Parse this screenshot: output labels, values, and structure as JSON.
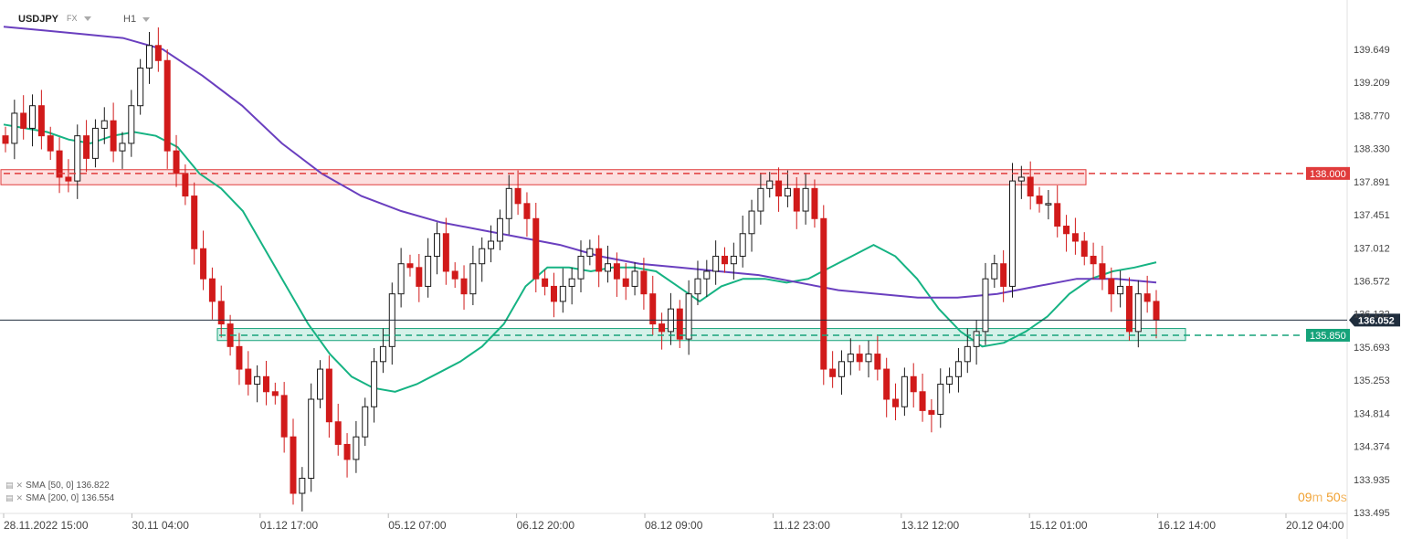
{
  "header": {
    "symbol": "USDJPY",
    "market": "FX",
    "timeframe": "H1"
  },
  "legend": [
    {
      "label": "SMA",
      "params": "[50, 0]",
      "value": "136.822"
    },
    {
      "label": "SMA",
      "params": "[200, 0]",
      "value": "136.554"
    }
  ],
  "countdown": {
    "minutes": "09",
    "min_unit": "m",
    "seconds": "50",
    "sec_unit": "s"
  },
  "colors": {
    "bull": "#1a1a1a",
    "bear": "#d11a1a",
    "sma50": "#16b383",
    "sma200": "#6a3fbf",
    "resistance": "#e03b3b",
    "support": "#16a37a",
    "current": "#1f2d3d"
  },
  "chart_data": {
    "type": "candlestick",
    "y_ticks": [
      "139.649",
      "139.209",
      "138.770",
      "138.330",
      "137.891",
      "137.451",
      "137.012",
      "136.572",
      "136.132",
      "135.693",
      "135.253",
      "134.814",
      "134.374",
      "133.935",
      "133.495"
    ],
    "x_ticks": [
      "28.11.2022 15:00",
      "30.11 04:00",
      "01.12 17:00",
      "05.12 07:00",
      "06.12 20:00",
      "08.12 09:00",
      "11.12 23:00",
      "13.12 12:00",
      "15.12 01:00",
      "16.12 14:00",
      "20.12 04:00"
    ],
    "ylim": [
      133.495,
      139.649
    ],
    "levels": [
      {
        "name": "resistance",
        "value": "138.000",
        "zone": [
          137.85,
          138.05
        ]
      },
      {
        "name": "support",
        "value": "135.850",
        "zone": [
          135.78,
          135.94
        ]
      }
    ],
    "current_price": "136.052",
    "closes": [
      138.4,
      138.8,
      138.6,
      138.9,
      138.5,
      138.3,
      137.95,
      137.9,
      138.5,
      138.2,
      138.6,
      138.7,
      138.3,
      138.4,
      138.9,
      139.4,
      139.7,
      139.5,
      138.3,
      138.0,
      137.7,
      137.0,
      136.6,
      136.3,
      136.0,
      135.7,
      135.4,
      135.2,
      135.3,
      135.1,
      135.05,
      134.5,
      133.75,
      133.95,
      135.0,
      135.4,
      134.7,
      134.4,
      134.2,
      134.5,
      134.9,
      135.5,
      135.7,
      136.4,
      136.8,
      136.75,
      136.5,
      136.9,
      137.2,
      136.7,
      136.6,
      136.4,
      136.8,
      137.0,
      137.1,
      137.4,
      137.8,
      137.6,
      137.4,
      136.6,
      136.5,
      136.3,
      136.5,
      136.6,
      136.9,
      137.0,
      136.7,
      136.8,
      136.6,
      136.5,
      136.7,
      136.4,
      136.0,
      135.9,
      136.2,
      135.8,
      136.4,
      136.6,
      136.7,
      136.9,
      136.8,
      136.9,
      137.2,
      137.5,
      137.8,
      137.9,
      137.7,
      137.8,
      137.5,
      137.8,
      137.4,
      135.4,
      135.3,
      135.5,
      135.6,
      135.5,
      135.6,
      135.4,
      135.0,
      134.9,
      135.3,
      135.1,
      134.85,
      134.8,
      135.2,
      135.3,
      135.5,
      135.7,
      135.9,
      136.6,
      136.8,
      136.5,
      137.9,
      137.95,
      137.7,
      137.6,
      137.6,
      137.3,
      137.2,
      137.1,
      136.9,
      136.8,
      136.6,
      136.4,
      136.5,
      135.9,
      136.4,
      136.3,
      136.05
    ],
    "series": [
      {
        "name": "SMA [50, 0]",
        "values": [
          138.65,
          138.6,
          138.55,
          138.45,
          138.4,
          138.5,
          138.55,
          138.5,
          138.35,
          138.0,
          137.8,
          137.5,
          137.0,
          136.5,
          136.0,
          135.6,
          135.3,
          135.15,
          135.1,
          135.2,
          135.35,
          135.5,
          135.7,
          136.0,
          136.5,
          136.75,
          136.75,
          136.7,
          136.75,
          136.75,
          136.7,
          136.5,
          136.3,
          136.5,
          136.6,
          136.6,
          136.55,
          136.6,
          136.75,
          136.9,
          137.05,
          136.9,
          136.6,
          136.2,
          135.9,
          135.7,
          135.75,
          135.9,
          136.1,
          136.4,
          136.6,
          136.7,
          136.75,
          136.82
        ]
      },
      {
        "name": "SMA [200, 0]",
        "values": [
          139.95,
          139.9,
          139.85,
          139.8,
          139.65,
          139.3,
          138.9,
          138.4,
          138.0,
          137.7,
          137.5,
          137.35,
          137.25,
          137.15,
          137.05,
          136.9,
          136.8,
          136.75,
          136.7,
          136.65,
          136.55,
          136.45,
          136.4,
          136.35,
          136.35,
          136.4,
          136.5,
          136.6,
          136.6,
          136.55
        ]
      }
    ]
  }
}
